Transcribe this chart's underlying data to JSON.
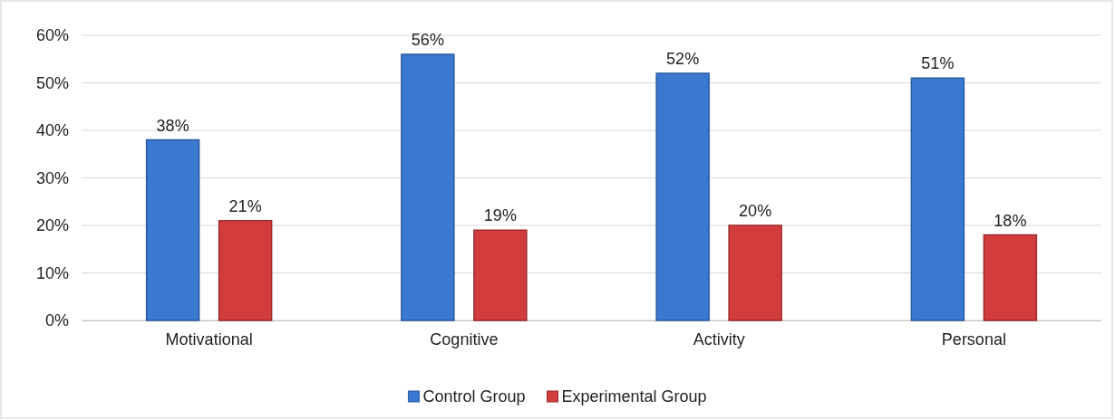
{
  "chart_data": {
    "type": "bar",
    "categories": [
      "Motivational",
      "Cognitive",
      "Activity",
      "Personal"
    ],
    "series": [
      {
        "name": "Control Group",
        "color": "#3a78d2",
        "values": [
          38,
          56,
          52,
          51
        ]
      },
      {
        "name": "Experimental Group",
        "color": "#d23c3c",
        "values": [
          21,
          19,
          20,
          18
        ]
      }
    ],
    "ylim": [
      0,
      60
    ],
    "yticks": [
      {
        "value": 0,
        "label": "0%"
      },
      {
        "value": 10,
        "label": "10%"
      },
      {
        "value": 20,
        "label": "20%"
      },
      {
        "value": 30,
        "label": "30%"
      },
      {
        "value": 40,
        "label": "40%"
      },
      {
        "value": 50,
        "label": "50%"
      },
      {
        "value": 60,
        "label": "60%"
      }
    ],
    "value_labels": [
      [
        "38%",
        "56%",
        "52%",
        "51%"
      ],
      [
        "21%",
        "19%",
        "20%",
        "18%"
      ]
    ],
    "grid": "y",
    "legend": "bottom"
  }
}
